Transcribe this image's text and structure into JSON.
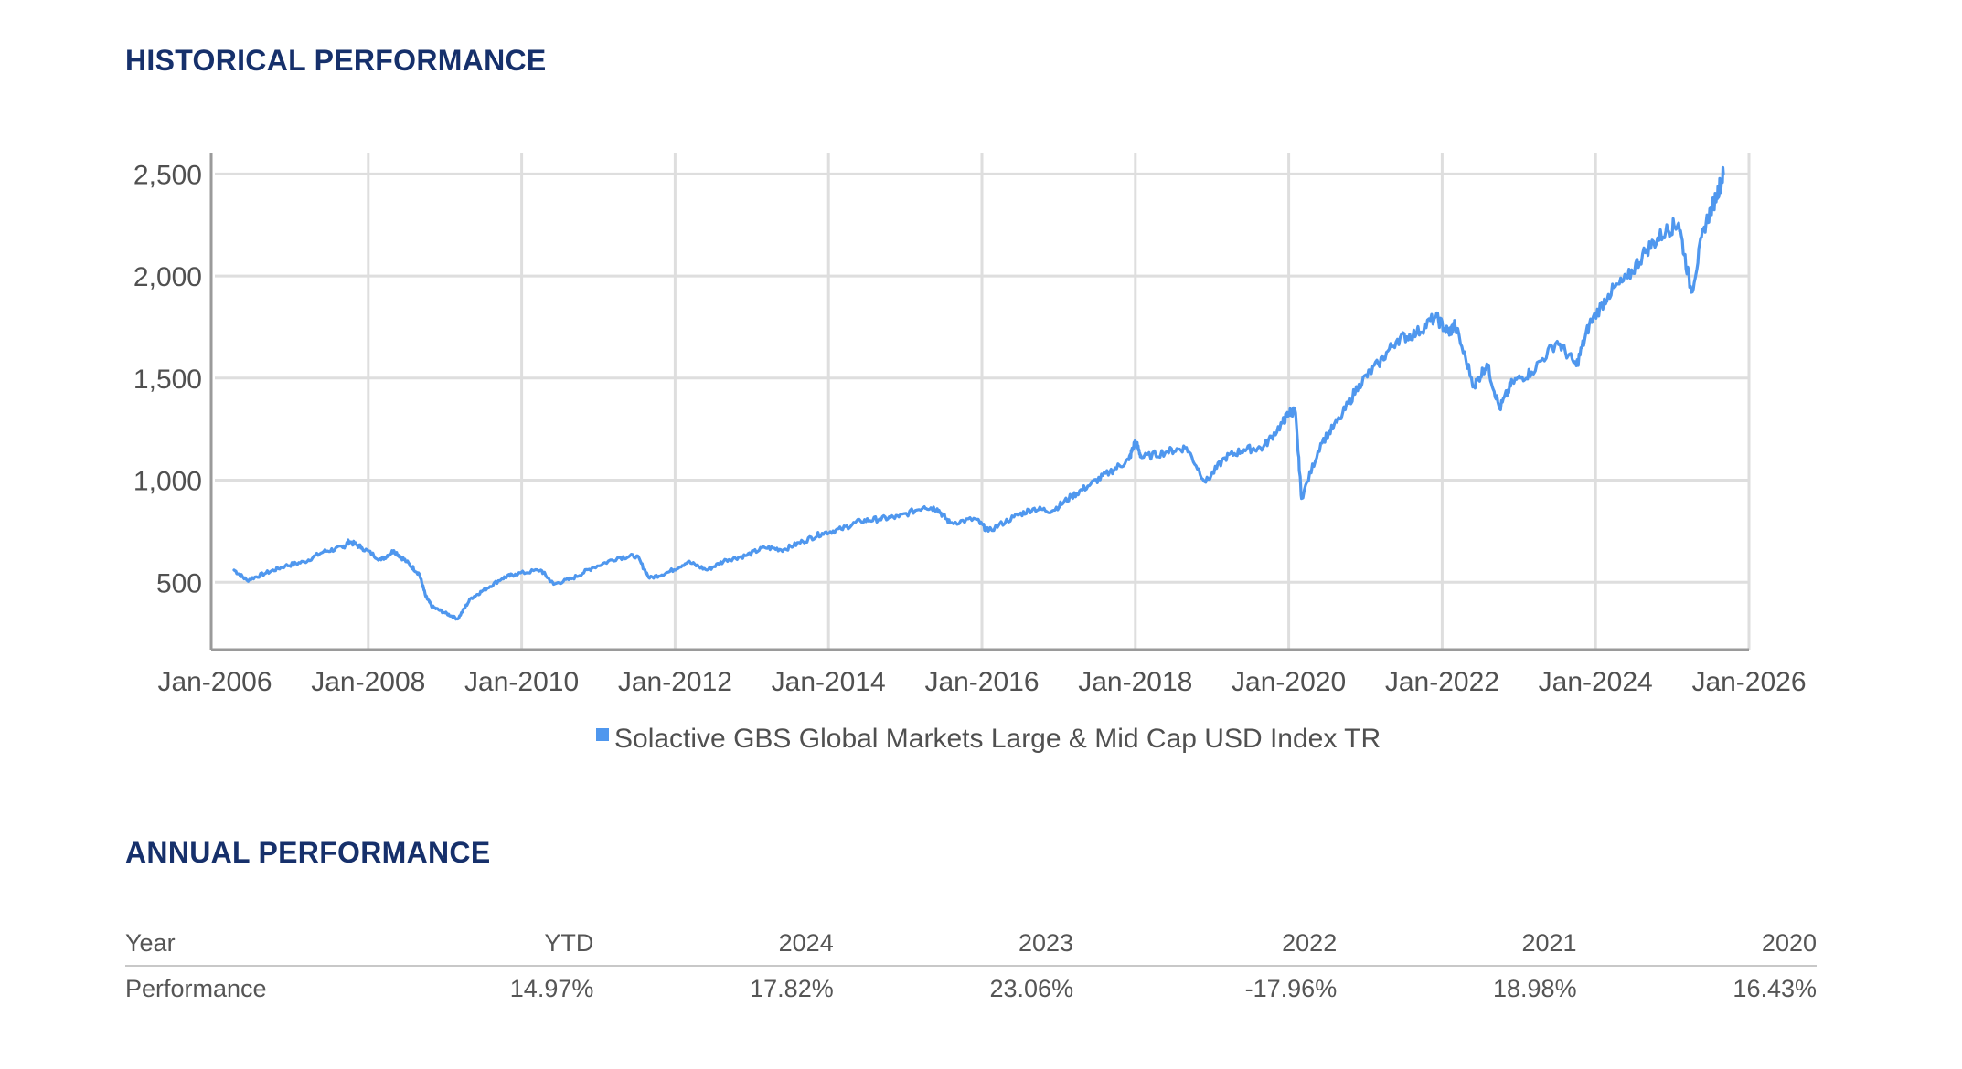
{
  "page": {
    "historical_title": "HISTORICAL PERFORMANCE",
    "annual_title": "ANNUAL PERFORMANCE"
  },
  "chart_data": {
    "type": "line",
    "title": "",
    "xlabel": "",
    "ylabel": "",
    "x_ticks": [
      "Jan-2006",
      "Jan-2008",
      "Jan-2010",
      "Jan-2012",
      "Jan-2014",
      "Jan-2016",
      "Jan-2018",
      "Jan-2020",
      "Jan-2022",
      "Jan-2024",
      "Jan-2026"
    ],
    "y_ticks": [
      500,
      1000,
      1500,
      2000,
      2500
    ],
    "y_tick_labels": [
      "500",
      "1,000",
      "1,500",
      "2,000",
      "2,500"
    ],
    "xlim": [
      "2006-01-01",
      "2026-01-01"
    ],
    "ylim": [
      170,
      2600
    ],
    "grid": true,
    "legend_position": "bottom-center",
    "color": "#4f97ee",
    "series": [
      {
        "name": "Solactive GBS Global Markets Large & Mid Cap USD Index TR",
        "points": [
          [
            "2006-04",
            560
          ],
          [
            "2006-06",
            510
          ],
          [
            "2006-09",
            545
          ],
          [
            "2006-12",
            580
          ],
          [
            "2007-03",
            600
          ],
          [
            "2007-06",
            650
          ],
          [
            "2007-09",
            670
          ],
          [
            "2007-10",
            700
          ],
          [
            "2007-12",
            670
          ],
          [
            "2008-03",
            610
          ],
          [
            "2008-05",
            655
          ],
          [
            "2008-07",
            600
          ],
          [
            "2008-09",
            540
          ],
          [
            "2008-10",
            430
          ],
          [
            "2008-11",
            380
          ],
          [
            "2009-01",
            350
          ],
          [
            "2009-03",
            320
          ],
          [
            "2009-05",
            420
          ],
          [
            "2009-07",
            460
          ],
          [
            "2009-10",
            520
          ],
          [
            "2009-12",
            540
          ],
          [
            "2010-04",
            560
          ],
          [
            "2010-06",
            490
          ],
          [
            "2010-09",
            520
          ],
          [
            "2010-12",
            570
          ],
          [
            "2011-04",
            620
          ],
          [
            "2011-07",
            630
          ],
          [
            "2011-09",
            520
          ],
          [
            "2011-12",
            550
          ],
          [
            "2012-03",
            600
          ],
          [
            "2012-06",
            560
          ],
          [
            "2012-09",
            610
          ],
          [
            "2012-12",
            630
          ],
          [
            "2013-03",
            670
          ],
          [
            "2013-06",
            660
          ],
          [
            "2013-09",
            700
          ],
          [
            "2013-12",
            740
          ],
          [
            "2014-03",
            760
          ],
          [
            "2014-06",
            800
          ],
          [
            "2014-09",
            810
          ],
          [
            "2014-12",
            820
          ],
          [
            "2015-04",
            870
          ],
          [
            "2015-06",
            860
          ],
          [
            "2015-08",
            790
          ],
          [
            "2015-12",
            810
          ],
          [
            "2016-02",
            750
          ],
          [
            "2016-06",
            820
          ],
          [
            "2016-09",
            860
          ],
          [
            "2016-12",
            850
          ],
          [
            "2017-03",
            920
          ],
          [
            "2017-06",
            980
          ],
          [
            "2017-09",
            1040
          ],
          [
            "2017-12",
            1100
          ],
          [
            "2018-01",
            1190
          ],
          [
            "2018-02",
            1110
          ],
          [
            "2018-06",
            1140
          ],
          [
            "2018-09",
            1160
          ],
          [
            "2018-12",
            990
          ],
          [
            "2019-03",
            1110
          ],
          [
            "2019-06",
            1150
          ],
          [
            "2019-09",
            1160
          ],
          [
            "2019-12",
            1280
          ],
          [
            "2020-01",
            1330
          ],
          [
            "2020-02",
            1340
          ],
          [
            "2020-03",
            910
          ],
          [
            "2020-06",
            1180
          ],
          [
            "2020-09",
            1300
          ],
          [
            "2020-12",
            1470
          ],
          [
            "2021-03",
            1570
          ],
          [
            "2021-06",
            1690
          ],
          [
            "2021-09",
            1720
          ],
          [
            "2021-12",
            1800
          ],
          [
            "2022-02",
            1720
          ],
          [
            "2022-03",
            1760
          ],
          [
            "2022-06",
            1460
          ],
          [
            "2022-08",
            1570
          ],
          [
            "2022-10",
            1350
          ],
          [
            "2022-12",
            1480
          ],
          [
            "2023-03",
            1530
          ],
          [
            "2023-07",
            1680
          ],
          [
            "2023-10",
            1560
          ],
          [
            "2023-12",
            1760
          ],
          [
            "2024-03",
            1910
          ],
          [
            "2024-06",
            1990
          ],
          [
            "2024-09",
            2130
          ],
          [
            "2024-12",
            2220
          ],
          [
            "2025-02",
            2260
          ],
          [
            "2025-04",
            1920
          ],
          [
            "2025-06",
            2240
          ],
          [
            "2025-08",
            2400
          ],
          [
            "2025-09",
            2500
          ]
        ]
      }
    ]
  },
  "annual": {
    "rows": [
      {
        "label": "Year",
        "values": [
          "YTD",
          "2024",
          "2023",
          "2022",
          "2021",
          "2020"
        ]
      },
      {
        "label": "Performance",
        "values": [
          "14.97%",
          "17.82%",
          "23.06%",
          "-17.96%",
          "18.98%",
          "16.43%"
        ]
      }
    ]
  }
}
